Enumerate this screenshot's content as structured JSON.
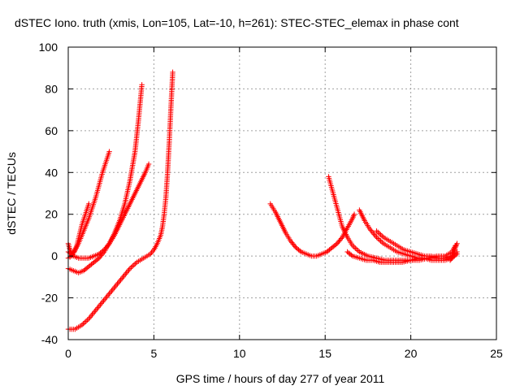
{
  "chart_data": {
    "type": "scatter",
    "title": "dSTEC Iono. truth (xmis, Lon=105, Lat=-10, h=261): STEC-STEC_elemax in phase cont",
    "xlabel": "GPS time / hours of day 277 of year 2011",
    "ylabel": "dSTEC  / TECUs",
    "xlim": [
      0,
      25
    ],
    "ylim": [
      -40,
      100
    ],
    "xticks": [
      0,
      5,
      10,
      15,
      20,
      25
    ],
    "yticks": [
      -40,
      -20,
      0,
      20,
      40,
      60,
      80,
      100
    ],
    "grid": true,
    "marker": "plus",
    "series_color": "#ff0000",
    "series": [
      {
        "x": [
          0.0,
          0.1,
          0.2,
          0.35,
          0.5,
          0.65,
          0.8,
          1.0,
          1.2
        ],
        "y": [
          6,
          3,
          1,
          2,
          5,
          10,
          15,
          20,
          25
        ]
      },
      {
        "x": [
          0.0,
          0.2,
          0.4,
          0.6,
          0.8,
          1.0,
          1.2,
          1.4,
          1.6,
          1.8,
          2.0,
          2.2,
          2.4
        ],
        "y": [
          -1,
          0,
          3,
          6,
          10,
          14,
          18,
          23,
          28,
          34,
          40,
          45,
          50
        ]
      },
      {
        "x": [
          0.0,
          0.3,
          0.6,
          0.9,
          1.2,
          1.5,
          1.8,
          2.1,
          2.4,
          2.7,
          3.0,
          3.3,
          3.6,
          3.9,
          4.1,
          4.3
        ],
        "y": [
          2,
          0,
          -1,
          -1,
          -1,
          0,
          1,
          3,
          6,
          11,
          17,
          25,
          36,
          50,
          65,
          82
        ]
      },
      {
        "x": [
          0.0,
          0.3,
          0.6,
          0.9,
          1.2,
          1.5,
          1.8,
          2.1,
          2.4,
          2.7,
          3.0,
          3.3,
          3.6,
          3.9,
          4.2,
          4.5,
          4.7
        ],
        "y": [
          -6,
          -7,
          -8,
          -7,
          -5,
          -3,
          -1,
          2,
          6,
          10,
          15,
          20,
          25,
          30,
          35,
          40,
          44
        ]
      },
      {
        "x": [
          0.0,
          0.4,
          0.8,
          1.2,
          1.6,
          2.0,
          2.4,
          2.8,
          3.2,
          3.6,
          4.0,
          4.4,
          4.8,
          5.0,
          5.2,
          5.4,
          5.5,
          5.6,
          5.7,
          5.8,
          5.9,
          6.0,
          6.1
        ],
        "y": [
          -35,
          -35,
          -33,
          -30,
          -26,
          -22,
          -18,
          -14,
          -10,
          -6,
          -3,
          -1,
          1,
          3,
          6,
          10,
          14,
          20,
          28,
          40,
          55,
          72,
          88
        ]
      },
      {
        "x": [
          11.8,
          12.1,
          12.4,
          12.7,
          13.0,
          13.3,
          13.6,
          13.9,
          14.2,
          14.5,
          14.8,
          15.1,
          15.4,
          15.7,
          16.0,
          16.2,
          16.4,
          16.6,
          16.7
        ],
        "y": [
          25,
          21,
          16,
          11,
          7,
          4,
          2,
          1,
          0,
          0,
          1,
          2,
          4,
          6,
          9,
          12,
          15,
          18,
          20
        ]
      },
      {
        "x": [
          15.2,
          15.4,
          15.6,
          15.8,
          16.0,
          16.3,
          16.6,
          17.0,
          17.5,
          18.0,
          18.5,
          19.0,
          19.5,
          20.0,
          20.5,
          21.0,
          21.5,
          22.0,
          22.4,
          22.6
        ],
        "y": [
          38,
          32,
          26,
          20,
          14,
          9,
          5,
          2,
          0,
          -1,
          -2,
          -2,
          -2,
          -2,
          -1,
          -1,
          0,
          0,
          2,
          5
        ]
      },
      {
        "x": [
          17.0,
          17.3,
          17.6,
          18.0,
          18.4,
          18.8,
          19.2,
          19.6,
          20.0,
          20.4,
          20.8,
          21.2,
          21.6,
          22.0,
          22.4,
          22.7
        ],
        "y": [
          22,
          17,
          13,
          9,
          6,
          4,
          2,
          1,
          0,
          -1,
          -1,
          -2,
          -2,
          -2,
          -1,
          1
        ]
      },
      {
        "x": [
          18.0,
          18.4,
          18.8,
          19.2,
          19.6,
          20.0,
          20.4,
          20.8,
          21.2,
          21.6,
          22.0,
          22.4,
          22.7
        ],
        "y": [
          12,
          9,
          7,
          5,
          3,
          2,
          1,
          0,
          0,
          -1,
          -1,
          0,
          2
        ]
      },
      {
        "x": [
          16.3,
          16.6,
          17.0,
          17.4,
          17.8,
          18.2,
          18.6,
          19.0,
          19.5,
          20.0,
          20.5,
          21.0,
          21.5,
          22.0,
          22.5
        ],
        "y": [
          2,
          0,
          -1,
          -2,
          -2,
          -3,
          -3,
          -3,
          -3,
          -2,
          -2,
          -1,
          -1,
          -1,
          0
        ]
      },
      {
        "x": [
          22.3,
          22.4,
          22.5,
          22.6,
          22.7
        ],
        "y": [
          -2,
          -1,
          2,
          4,
          6
        ]
      }
    ]
  }
}
